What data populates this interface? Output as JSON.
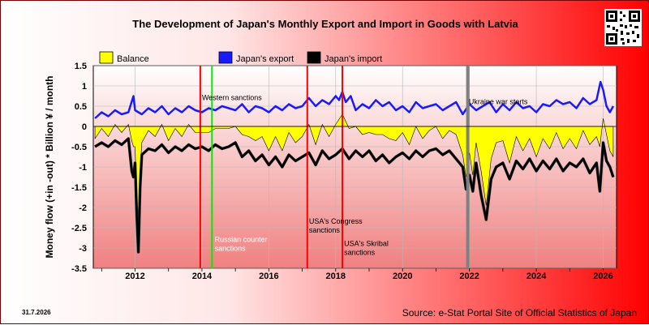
{
  "title": "The Development of Japan's Monthly Export and Import in Goods with Latvia",
  "date_stamp": "31.7.2026",
  "source": "Source: e-Stat Portal Site of Official Statistics of Japan",
  "colors": {
    "export": "#1a1aff",
    "import": "#000000",
    "balance": "#ffff00",
    "red_line": "#ff0000",
    "green_line": "#00ee00",
    "grey_line": "#808080"
  },
  "chart_data": {
    "type": "line",
    "title": "The Development of Japan's Monthly Export and Import in Goods with Latvia",
    "ylabel": "Money flow (+in -out) * Billion ¥ / month",
    "xlabel": "",
    "ylim": [
      -3.5,
      1.5
    ],
    "xlim": [
      2010.75,
      2026.4
    ],
    "y_ticks": [
      "1.5",
      "1",
      "0.5",
      "0",
      "-0.5",
      "-1",
      "-1.5",
      "-2",
      "-2.5",
      "-3",
      "-3.5"
    ],
    "x_ticks": [
      "2012",
      "2014",
      "2016",
      "2018",
      "2020",
      "2022",
      "2024",
      "2026"
    ],
    "legend": [
      "Balance",
      "Japan's export",
      "Japan's import"
    ],
    "legend_position": "top",
    "grid": true,
    "series": [
      {
        "name": "Japan's export",
        "x": [
          2010.8,
          2011.0,
          2011.2,
          2011.4,
          2011.6,
          2011.8,
          2011.95,
          2012.0,
          2012.2,
          2012.4,
          2012.6,
          2012.8,
          2013.0,
          2013.2,
          2013.4,
          2013.6,
          2013.8,
          2014.0,
          2014.2,
          2014.4,
          2014.6,
          2014.8,
          2015.0,
          2015.2,
          2015.4,
          2015.6,
          2015.8,
          2016.0,
          2016.2,
          2016.4,
          2016.6,
          2016.8,
          2017.0,
          2017.2,
          2017.4,
          2017.6,
          2017.8,
          2018.0,
          2018.1,
          2018.2,
          2018.3,
          2018.45,
          2018.6,
          2018.8,
          2019.0,
          2019.2,
          2019.4,
          2019.6,
          2019.8,
          2020.0,
          2020.2,
          2020.4,
          2020.6,
          2020.8,
          2021.0,
          2021.2,
          2021.4,
          2021.6,
          2021.8,
          2022.0,
          2022.2,
          2022.4,
          2022.6,
          2022.8,
          2023.0,
          2023.2,
          2023.4,
          2023.6,
          2023.8,
          2024.0,
          2024.2,
          2024.4,
          2024.6,
          2024.8,
          2025.0,
          2025.2,
          2025.4,
          2025.6,
          2025.8,
          2025.92,
          2026.0,
          2026.1,
          2026.2,
          2026.3
        ],
        "values": [
          0.2,
          0.35,
          0.25,
          0.4,
          0.3,
          0.35,
          0.75,
          0.4,
          0.3,
          0.45,
          0.35,
          0.5,
          0.3,
          0.45,
          0.35,
          0.5,
          0.4,
          0.35,
          0.45,
          0.4,
          0.5,
          0.45,
          0.4,
          0.55,
          0.35,
          0.5,
          0.45,
          0.35,
          0.5,
          0.4,
          0.55,
          0.45,
          0.5,
          0.7,
          0.5,
          0.65,
          0.55,
          0.75,
          0.65,
          0.85,
          0.6,
          0.75,
          0.4,
          0.55,
          0.45,
          0.65,
          0.5,
          0.6,
          0.4,
          0.5,
          0.35,
          0.6,
          0.45,
          0.5,
          0.55,
          0.4,
          0.5,
          0.6,
          0.3,
          0.55,
          0.4,
          0.5,
          0.6,
          0.35,
          0.55,
          0.4,
          0.6,
          0.45,
          0.5,
          0.35,
          0.55,
          0.5,
          0.65,
          0.55,
          0.6,
          0.45,
          0.7,
          0.55,
          0.65,
          1.1,
          0.9,
          0.5,
          0.35,
          0.5
        ]
      },
      {
        "name": "Japan's import",
        "x": [
          2010.8,
          2011.0,
          2011.2,
          2011.4,
          2011.6,
          2011.8,
          2011.9,
          2011.95,
          2012.0,
          2012.05,
          2012.1,
          2012.15,
          2012.2,
          2012.4,
          2012.6,
          2012.8,
          2013.0,
          2013.2,
          2013.4,
          2013.6,
          2013.8,
          2014.0,
          2014.2,
          2014.4,
          2014.6,
          2014.8,
          2015.0,
          2015.2,
          2015.4,
          2015.6,
          2015.8,
          2016.0,
          2016.2,
          2016.4,
          2016.6,
          2016.8,
          2017.0,
          2017.2,
          2017.4,
          2017.6,
          2017.8,
          2018.0,
          2018.2,
          2018.4,
          2018.6,
          2018.8,
          2019.0,
          2019.2,
          2019.4,
          2019.6,
          2019.8,
          2020.0,
          2020.2,
          2020.4,
          2020.6,
          2020.8,
          2021.0,
          2021.2,
          2021.4,
          2021.6,
          2021.8,
          2021.9,
          2022.0,
          2022.1,
          2022.2,
          2022.35,
          2022.5,
          2022.65,
          2022.8,
          2023.0,
          2023.2,
          2023.4,
          2023.6,
          2023.8,
          2024.0,
          2024.2,
          2024.4,
          2024.6,
          2024.8,
          2025.0,
          2025.2,
          2025.4,
          2025.6,
          2025.8,
          2025.9,
          2026.0,
          2026.1,
          2026.2,
          2026.3
        ],
        "values": [
          -0.5,
          -0.4,
          -0.5,
          -0.35,
          -0.45,
          -0.3,
          -1.1,
          -1.25,
          -0.9,
          -2.2,
          -3.1,
          -1.5,
          -0.7,
          -0.55,
          -0.6,
          -0.45,
          -0.65,
          -0.5,
          -0.6,
          -0.45,
          -0.55,
          -0.5,
          -0.6,
          -0.45,
          -0.55,
          -0.5,
          -0.4,
          -0.75,
          -0.6,
          -0.85,
          -0.7,
          -0.95,
          -0.75,
          -1.0,
          -0.7,
          -0.85,
          -0.75,
          -0.65,
          -0.95,
          -0.6,
          -0.8,
          -0.7,
          -0.55,
          -0.8,
          -0.6,
          -0.75,
          -0.6,
          -0.85,
          -0.7,
          -0.9,
          -0.75,
          -0.65,
          -0.8,
          -0.6,
          -0.75,
          -0.6,
          -0.55,
          -0.7,
          -0.6,
          -0.8,
          -1.0,
          -1.55,
          -1.2,
          -1.6,
          -0.9,
          -1.7,
          -2.3,
          -1.3,
          -1.0,
          -0.9,
          -1.3,
          -0.85,
          -1.05,
          -0.8,
          -1.1,
          -0.85,
          -1.05,
          -0.8,
          -1.1,
          -0.9,
          -1.0,
          -0.8,
          -1.15,
          -0.9,
          -1.6,
          -0.4,
          -0.85,
          -1.0,
          -1.25
        ]
      },
      {
        "name": "Balance",
        "x": [
          2010.8,
          2011.0,
          2011.2,
          2011.4,
          2011.6,
          2011.8,
          2011.9,
          2011.95,
          2012.0,
          2012.05,
          2012.1,
          2012.15,
          2012.2,
          2012.4,
          2012.6,
          2012.8,
          2013.0,
          2013.2,
          2013.4,
          2013.6,
          2013.8,
          2014.0,
          2014.2,
          2014.4,
          2014.6,
          2014.8,
          2015.0,
          2015.2,
          2015.4,
          2015.6,
          2015.8,
          2016.0,
          2016.2,
          2016.4,
          2016.6,
          2016.8,
          2017.0,
          2017.2,
          2017.4,
          2017.6,
          2017.8,
          2018.0,
          2018.2,
          2018.4,
          2018.6,
          2018.8,
          2019.0,
          2019.2,
          2019.4,
          2019.6,
          2019.8,
          2020.0,
          2020.2,
          2020.4,
          2020.6,
          2020.8,
          2021.0,
          2021.2,
          2021.4,
          2021.6,
          2021.8,
          2021.9,
          2022.0,
          2022.1,
          2022.2,
          2022.35,
          2022.5,
          2022.65,
          2022.8,
          2023.0,
          2023.2,
          2023.4,
          2023.6,
          2023.8,
          2024.0,
          2024.2,
          2024.4,
          2024.6,
          2024.8,
          2025.0,
          2025.2,
          2025.4,
          2025.6,
          2025.8,
          2025.9,
          2026.0,
          2026.1,
          2026.2,
          2026.3
        ],
        "values": [
          -0.3,
          -0.05,
          -0.25,
          0.05,
          -0.15,
          0.05,
          -0.35,
          -0.5,
          -0.5,
          -1.8,
          -2.75,
          -1.1,
          -0.4,
          -0.1,
          -0.25,
          0.05,
          -0.35,
          -0.05,
          -0.25,
          0.05,
          -0.15,
          -0.15,
          -0.15,
          -0.05,
          -0.05,
          -0.05,
          0.0,
          -0.2,
          -0.25,
          -0.35,
          -0.25,
          -0.6,
          -0.25,
          -0.6,
          -0.15,
          -0.4,
          -0.25,
          0.05,
          -0.45,
          0.05,
          -0.25,
          0.05,
          0.3,
          -0.05,
          0.0,
          -0.2,
          -0.15,
          -0.2,
          -0.2,
          -0.3,
          -0.35,
          -0.15,
          -0.45,
          0.0,
          -0.3,
          -0.1,
          0.0,
          -0.3,
          -0.1,
          -0.2,
          -0.7,
          -1.25,
          -0.65,
          -1.2,
          -0.4,
          -1.1,
          -1.95,
          -0.8,
          -0.4,
          -0.35,
          -0.9,
          -0.25,
          -0.6,
          -0.3,
          -0.75,
          -0.3,
          -0.55,
          -0.15,
          -0.55,
          -0.3,
          -0.55,
          -0.1,
          -0.45,
          -0.25,
          -0.5,
          0.2,
          -0.2,
          -0.6,
          -0.75
        ]
      }
    ],
    "events": [
      {
        "x": 2013.95,
        "color": "red",
        "label": ""
      },
      {
        "x": 2014.3,
        "color": "green",
        "label": "Russian counter sanctions"
      },
      {
        "x": 2017.15,
        "color": "red",
        "label": "USA's Congress sanctions"
      },
      {
        "x": 2018.2,
        "color": "red",
        "label": "USA's Skribal sanctions"
      },
      {
        "x": 2021.95,
        "color": "grey",
        "label": "Ukraine war starts"
      }
    ],
    "annotations": [
      {
        "x": 2014.0,
        "y": 0.65,
        "text": "Western sanctions"
      }
    ]
  }
}
